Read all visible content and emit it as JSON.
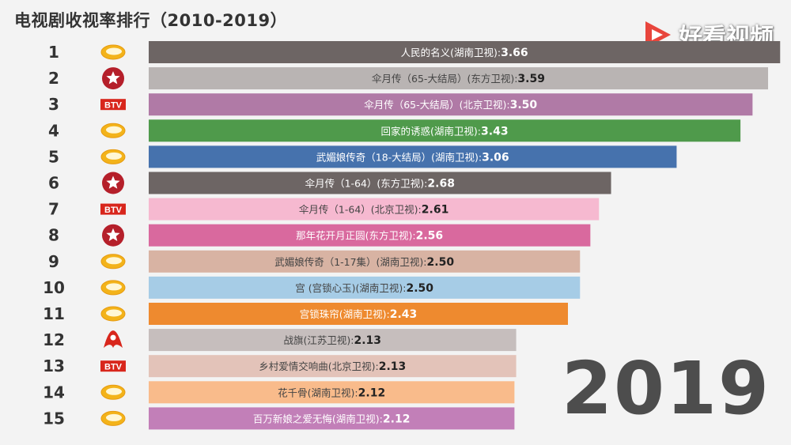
{
  "title": "电视剧收视率排行（2010-2019）",
  "brand": {
    "text": "好看视频",
    "icon": "play-triangle-icon",
    "color": "#e8453c"
  },
  "year_label": "2019",
  "chart_data": {
    "type": "bar",
    "orientation": "horizontal",
    "xlim": [
      0,
      3.7
    ],
    "grid": false,
    "rows": [
      {
        "rank": "1",
        "label": "人民的名义(湖南卫视):",
        "value": 3.66,
        "value_text": "3.66",
        "color": "#6d6564",
        "channel": "hunan"
      },
      {
        "rank": "2",
        "label": "伞月传（65-大结局）(东方卫视):",
        "value": 3.59,
        "value_text": "3.59",
        "color": "#b9b4b3",
        "channel": "dragon"
      },
      {
        "rank": "3",
        "label": "伞月传（65-大结局）(北京卫视):",
        "value": 3.5,
        "value_text": "3.50",
        "color": "#b07aa6",
        "channel": "btv"
      },
      {
        "rank": "4",
        "label": "回家的诱惑(湖南卫视):",
        "value": 3.43,
        "value_text": "3.43",
        "color": "#4f9a4b",
        "channel": "hunan"
      },
      {
        "rank": "5",
        "label": "武媚娘传奇（18-大结局）(湖南卫视):",
        "value": 3.06,
        "value_text": "3.06",
        "color": "#4672ad",
        "channel": "hunan"
      },
      {
        "rank": "6",
        "label": "伞月传（1-64）(东方卫视):",
        "value": 2.68,
        "value_text": "2.68",
        "color": "#6d6564",
        "channel": "dragon"
      },
      {
        "rank": "7",
        "label": "伞月传（1-64）(北京卫视):",
        "value": 2.61,
        "value_text": "2.61",
        "color": "#f6b9d0",
        "channel": "btv"
      },
      {
        "rank": "8",
        "label": "那年花开月正圆(东方卫视):",
        "value": 2.56,
        "value_text": "2.56",
        "color": "#d9699e",
        "channel": "dragon"
      },
      {
        "rank": "9",
        "label": "武媚娘传奇（1-17集）(湖南卫视):",
        "value": 2.5,
        "value_text": "2.50",
        "color": "#d8b3a3",
        "channel": "hunan"
      },
      {
        "rank": "10",
        "label": "宫 (宫锁心玉)(湖南卫视):",
        "value": 2.5,
        "value_text": "2.50",
        "color": "#a6cce6",
        "channel": "hunan"
      },
      {
        "rank": "11",
        "label": "宫锁珠帘(湖南卫视):",
        "value": 2.43,
        "value_text": "2.43",
        "color": "#ee8a2f",
        "channel": "hunan"
      },
      {
        "rank": "12",
        "label": "战旗(江苏卫视):",
        "value": 2.13,
        "value_text": "2.13",
        "color": "#c6bebd",
        "channel": "jiangsu"
      },
      {
        "rank": "13",
        "label": "乡村爱情交响曲(北京卫视):",
        "value": 2.13,
        "value_text": "2.13",
        "color": "#e3c3b9",
        "channel": "btv"
      },
      {
        "rank": "14",
        "label": "花千骨(湖南卫视):",
        "value": 2.12,
        "value_text": "2.12",
        "color": "#f9bb8b",
        "channel": "hunan"
      },
      {
        "rank": "15",
        "label": "百万新娘之爱无悔(湖南卫视):",
        "value": 2.12,
        "value_text": "2.12",
        "color": "#c27fb8",
        "channel": "hunan"
      }
    ]
  },
  "channel_logos": {
    "hunan": {
      "icon": "hunan-tv-mango-icon",
      "color": "#f3b31a"
    },
    "dragon": {
      "icon": "dragon-tv-star-icon",
      "color": "#b51f2a"
    },
    "btv": {
      "icon": "btv-logo-icon",
      "color": "#d8261c",
      "text": "BTV"
    },
    "jiangsu": {
      "icon": "jiangsu-tv-icon",
      "color": "#d8261c"
    }
  }
}
